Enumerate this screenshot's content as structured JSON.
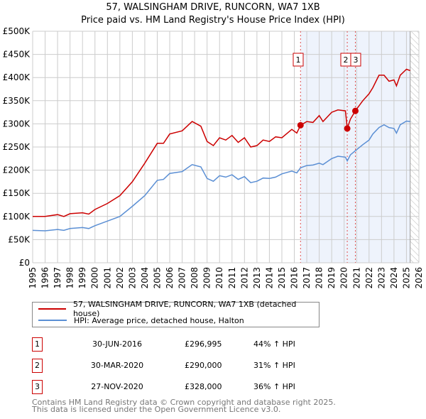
{
  "chart_data": {
    "type": "line",
    "title": "57, WALSINGHAM DRIVE, RUNCORN, WA7 1XB",
    "subtitle": "Price paid vs. HM Land Registry's House Price Index (HPI)",
    "xlim": [
      1995,
      2026
    ],
    "ylim": [
      0,
      500000
    ],
    "yticks": [
      {
        "v": 0,
        "label": "£0"
      },
      {
        "v": 50000,
        "label": "£50K"
      },
      {
        "v": 100000,
        "label": "£100K"
      },
      {
        "v": 150000,
        "label": "£150K"
      },
      {
        "v": 200000,
        "label": "£200K"
      },
      {
        "v": 250000,
        "label": "£250K"
      },
      {
        "v": 300000,
        "label": "£300K"
      },
      {
        "v": 350000,
        "label": "£350K"
      },
      {
        "v": 400000,
        "label": "£400K"
      },
      {
        "v": 450000,
        "label": "£450K"
      },
      {
        "v": 500000,
        "label": "£500K"
      }
    ],
    "xticks": [
      "1995",
      "1996",
      "1997",
      "1998",
      "1999",
      "2000",
      "2001",
      "2002",
      "2003",
      "2004",
      "2005",
      "2006",
      "2007",
      "2008",
      "2009",
      "2010",
      "2011",
      "2012",
      "2013",
      "2014",
      "2015",
      "2016",
      "2017",
      "2018",
      "2019",
      "2020",
      "2021",
      "2022",
      "2023",
      "2024",
      "2025",
      "2026"
    ],
    "grid": true,
    "series": [
      {
        "name": "57, WALSINGHAM DRIVE, RUNCORN, WA7 1XB (detached house)",
        "color": "#cc0000",
        "x": [
          1995,
          1996,
          1997,
          1997.5,
          1998,
          1999,
          1999.5,
          2000,
          2001,
          2002,
          2003,
          2004,
          2005,
          2005.5,
          2006,
          2007,
          2007.8,
          2008.5,
          2009,
          2009.5,
          2010,
          2010.5,
          2011,
          2011.5,
          2012,
          2012.5,
          2013,
          2013.5,
          2014,
          2014.5,
          2015,
          2015.8,
          2016.2,
          2016.5,
          2017,
          2017.5,
          2018,
          2018.3,
          2019,
          2019.5,
          2020.1,
          2020.25,
          2020.5,
          2020.9,
          2021.5,
          2022,
          2022.3,
          2022.8,
          2023.2,
          2023.6,
          2024,
          2024.2,
          2024.5,
          2025,
          2025.3
        ],
        "y": [
          100000,
          100000,
          104000,
          100000,
          106000,
          108000,
          105000,
          115000,
          128000,
          145000,
          175000,
          215000,
          258000,
          258000,
          278000,
          285000,
          305000,
          295000,
          262000,
          253000,
          270000,
          265000,
          275000,
          260000,
          270000,
          250000,
          253000,
          265000,
          262000,
          272000,
          270000,
          288000,
          280000,
          296995,
          305000,
          303000,
          318000,
          305000,
          325000,
          330000,
          328000,
          290000,
          310000,
          328000,
          350000,
          365000,
          378000,
          405000,
          405000,
          392000,
          395000,
          382000,
          405000,
          418000,
          415000
        ]
      },
      {
        "name": "HPI: Average price, detached house, Halton",
        "color": "#5b8fd4",
        "x": [
          1995,
          1996,
          1997,
          1997.5,
          1998,
          1999,
          1999.5,
          2000,
          2001,
          2002,
          2003,
          2004,
          2005,
          2005.5,
          2006,
          2007,
          2007.8,
          2008.5,
          2009,
          2009.5,
          2010,
          2010.5,
          2011,
          2011.5,
          2012,
          2012.5,
          2013,
          2013.5,
          2014,
          2014.5,
          2015,
          2015.8,
          2016.2,
          2016.5,
          2017,
          2017.5,
          2018,
          2018.3,
          2019,
          2019.5,
          2020.1,
          2020.25,
          2020.5,
          2020.9,
          2021.5,
          2022,
          2022.3,
          2022.8,
          2023.2,
          2023.6,
          2024,
          2024.2,
          2024.5,
          2025,
          2025.3
        ],
        "y": [
          70000,
          69000,
          72000,
          70000,
          74000,
          76000,
          74000,
          80000,
          90000,
          100000,
          122000,
          145000,
          178000,
          180000,
          193000,
          197000,
          212000,
          207000,
          182000,
          176000,
          188000,
          185000,
          190000,
          180000,
          186000,
          173000,
          176000,
          183000,
          182000,
          185000,
          192000,
          198000,
          194000,
          205000,
          210000,
          211000,
          215000,
          212000,
          225000,
          230000,
          228000,
          220000,
          233000,
          242000,
          255000,
          265000,
          278000,
          292000,
          298000,
          292000,
          290000,
          280000,
          298000,
          306000,
          305000
        ]
      }
    ],
    "sales": [
      {
        "label": "1",
        "x": 2016.5,
        "price": 296995,
        "date": "30-JUN-2016",
        "price_text": "£296,995",
        "hpi_text": "44% ↑ HPI"
      },
      {
        "label": "2",
        "x": 2020.25,
        "price": 290000,
        "date": "30-MAR-2020",
        "price_text": "£290,000",
        "hpi_text": "31% ↑ HPI"
      },
      {
        "label": "3",
        "x": 2020.9,
        "price": 328000,
        "date": "27-NOV-2020",
        "price_text": "£328,000",
        "hpi_text": "36% ↑ HPI"
      }
    ],
    "shade_end": 2025.3
  },
  "footer": {
    "line1": "Contains HM Land Registry data © Crown copyright and database right 2025.",
    "line2": "This data is licensed under the Open Government Licence v3.0."
  }
}
